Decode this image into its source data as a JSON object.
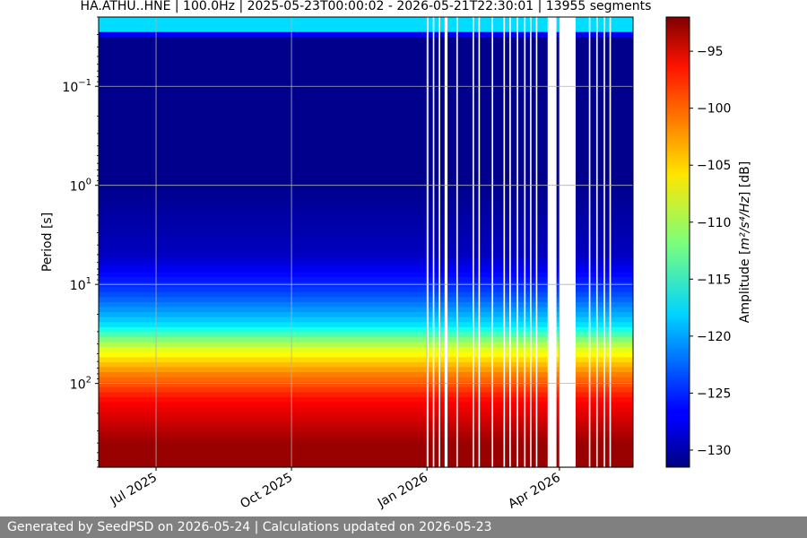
{
  "chart_data": {
    "type": "heatmap",
    "title": "HA.ATHU..HNE | 100.0Hz | 2025-05-23T00:00:02 - 2026-05-21T22:30:01 | 13955 segments",
    "ylabel": "Period [s]",
    "yscale": "log",
    "y_reversed": true,
    "ylim": [
      0.02,
      700
    ],
    "y_ticks": [
      {
        "exp": "-1",
        "value": 0.1
      },
      {
        "exp": "0",
        "value": 1
      },
      {
        "exp": "1",
        "value": 10
      },
      {
        "exp": "2",
        "value": 100
      }
    ],
    "x_range": [
      "2025-05-23",
      "2026-05-21"
    ],
    "x_ticks": [
      {
        "label": "Jul 2025",
        "date": "2025-07-01"
      },
      {
        "label": "Oct 2025",
        "date": "2025-10-01"
      },
      {
        "label": "Jan 2026",
        "date": "2026-01-01"
      },
      {
        "label": "Apr 2026",
        "date": "2026-04-01"
      }
    ],
    "grid": true,
    "colormap": "jet",
    "colorbar": {
      "label_prefix": "Amplitude [",
      "label_math": "m²/s⁴/Hz",
      "label_suffix": "] [dB]",
      "range": [
        -131.5,
        -92.0
      ],
      "ticks": [
        "−95",
        "−100",
        "−105",
        "−110",
        "−115",
        "−120",
        "−125",
        "−130"
      ],
      "tick_values": [
        -95,
        -100,
        -105,
        -110,
        -115,
        -120,
        -125,
        -130
      ]
    },
    "amplitude_profile_db": [
      {
        "period_s": 0.02,
        "db": -118
      },
      {
        "period_s": 0.028,
        "db": -118
      },
      {
        "period_s": 0.031,
        "db": -131
      },
      {
        "period_s": 1,
        "db": -131
      },
      {
        "period_s": 5,
        "db": -129
      },
      {
        "period_s": 12,
        "db": -124
      },
      {
        "period_s": 25,
        "db": -118
      },
      {
        "period_s": 45,
        "db": -108
      },
      {
        "period_s": 80,
        "db": -102
      },
      {
        "period_s": 150,
        "db": -97
      },
      {
        "period_s": 400,
        "db": -93
      }
    ],
    "data_gaps": [
      {
        "start": "2026-01-01",
        "end": "2026-01-02"
      },
      {
        "start": "2026-01-05",
        "end": "2026-01-06"
      },
      {
        "start": "2026-01-09",
        "end": "2026-01-10"
      },
      {
        "start": "2026-01-13",
        "end": "2026-01-15"
      },
      {
        "start": "2026-01-21",
        "end": "2026-01-22"
      },
      {
        "start": "2026-02-01",
        "end": "2026-02-02"
      },
      {
        "start": "2026-02-05",
        "end": "2026-02-06"
      },
      {
        "start": "2026-02-14",
        "end": "2026-02-15"
      },
      {
        "start": "2026-02-22",
        "end": "2026-02-23"
      },
      {
        "start": "2026-02-26",
        "end": "2026-02-27"
      },
      {
        "start": "2026-03-03",
        "end": "2026-03-04"
      },
      {
        "start": "2026-03-08",
        "end": "2026-03-09"
      },
      {
        "start": "2026-03-12",
        "end": "2026-03-13"
      },
      {
        "start": "2026-03-16",
        "end": "2026-03-17"
      },
      {
        "start": "2026-03-24",
        "end": "2026-03-30"
      },
      {
        "start": "2026-04-01",
        "end": "2026-04-12"
      },
      {
        "start": "2026-04-21",
        "end": "2026-04-22"
      },
      {
        "start": "2026-04-26",
        "end": "2026-04-27"
      },
      {
        "start": "2026-05-01",
        "end": "2026-05-02"
      },
      {
        "start": "2026-05-05",
        "end": "2026-05-06"
      }
    ]
  },
  "footer": {
    "text": "Generated by SeedPSD on 2026-05-24 | Calculations updated on 2026-05-23"
  }
}
